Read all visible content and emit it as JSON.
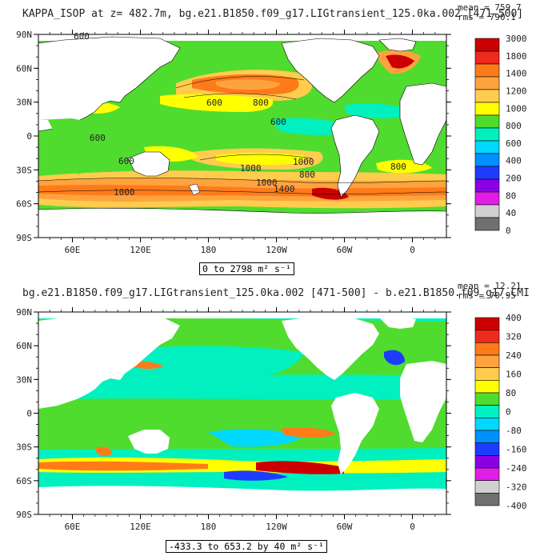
{
  "panels": [
    {
      "title": "KAPPA_ISOP at z= 482.7m, bg.e21.B1850.f09_g17.LIGtransient_125.0ka.002 [471-500]",
      "mean_label": "mean = 759.7",
      "rms_label": "rms = 790.1",
      "range_label": "0 to 2798 m² s⁻¹",
      "colorbar": {
        "levels": [
          "3000",
          "1800",
          "1400",
          "1200",
          "1000",
          "800",
          "600",
          "400",
          "200",
          "80",
          "40",
          "0"
        ],
        "colors": [
          "#ffffff",
          "#cc0000",
          "#ff4020",
          "#ff8c19",
          "#ffa63e",
          "#ffcc4d",
          "#ffff00",
          "#4fdc2e",
          "#00e9a0",
          "#00c8ff",
          "#0080ff",
          "#1428ff",
          "#8a00e6",
          "#e01ee6",
          "#c8c8c8",
          "#707070"
        ],
        "visible_colors": [
          "#cc0000",
          "#ee2a1c",
          "#ff7b1a",
          "#ffa33f",
          "#ffcc4d",
          "#ffff00",
          "#4fdc2e",
          "#00f0c0",
          "#00d8ff",
          "#0090ff",
          "#1e3cff",
          "#8a00e6",
          "#e01ee6",
          "#d0d0d0",
          "#707070"
        ]
      },
      "contour_labels": [
        "600",
        "600",
        "800",
        "600",
        "600",
        "1000",
        "600",
        "800",
        "1000",
        "1000",
        "1400",
        "1000",
        "800"
      ]
    },
    {
      "title": "bg.e21.B1850.f09_g17.LIGtransient_125.0ka.002 [471-500] - b.e21.B1850.f09_g17.CMI",
      "mean_label": "mean = 12.21",
      "rms_label": "rms = 70.95",
      "range_label": "-433.3 to 653.2 by 40 m² s⁻¹",
      "colorbar": {
        "levels": [
          "400",
          "320",
          "240",
          "160",
          "80",
          "0",
          "-80",
          "-160",
          "-240",
          "-320",
          "-400"
        ],
        "visible_colors": [
          "#cc0000",
          "#ee2a1c",
          "#ff7b1a",
          "#ffa33f",
          "#ffcc4d",
          "#ffff00",
          "#4fdc2e",
          "#00f0c0",
          "#00d8ff",
          "#0090ff",
          "#1e3cff",
          "#8a00e6",
          "#e01ee6",
          "#d0d0d0",
          "#707070"
        ]
      }
    }
  ],
  "axes": {
    "lat_labels": [
      "90N",
      "60N",
      "30N",
      "0",
      "30S",
      "60S",
      "90S"
    ],
    "lon_labels": [
      "60E",
      "120E",
      "180",
      "120W",
      "60W",
      "0"
    ]
  }
}
